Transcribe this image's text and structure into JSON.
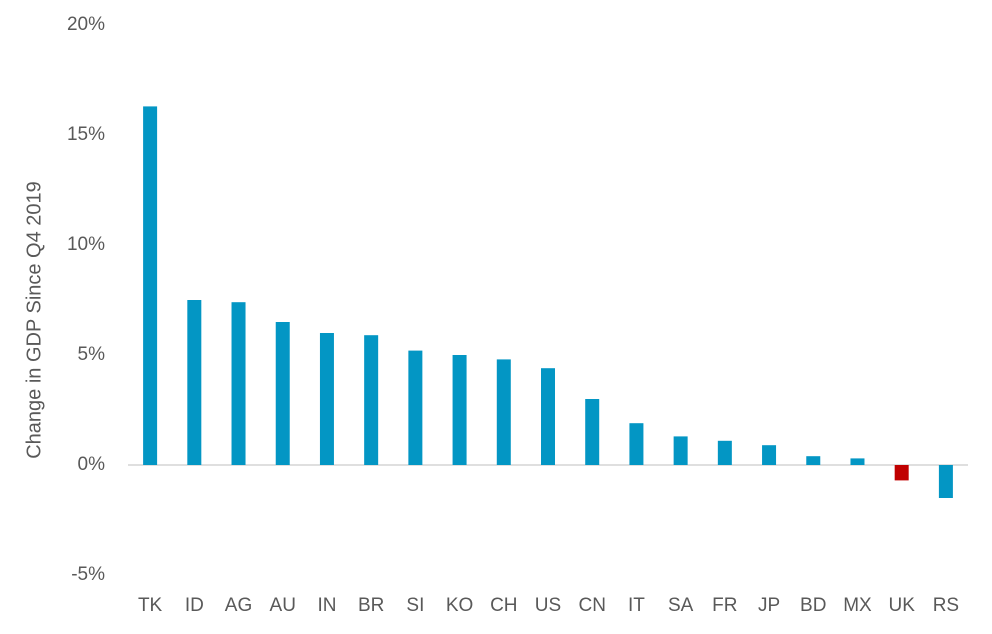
{
  "chart_data": {
    "type": "bar",
    "y_axis_label": "Change in GDP Since Q4 2019",
    "categories": [
      "TK",
      "ID",
      "AG",
      "AU",
      "IN",
      "BR",
      "SI",
      "KO",
      "CH",
      "US",
      "CN",
      "IT",
      "SA",
      "FR",
      "JP",
      "BD",
      "MX",
      "UK",
      "RS"
    ],
    "values": [
      16.3,
      7.5,
      7.4,
      6.5,
      6.0,
      5.9,
      5.2,
      5.0,
      4.8,
      4.4,
      3.0,
      1.9,
      1.3,
      1.1,
      0.9,
      0.4,
      0.3,
      -0.7,
      -1.5
    ],
    "colors": [
      "#0396c4",
      "#0396c4",
      "#0396c4",
      "#0396c4",
      "#0396c4",
      "#0396c4",
      "#0396c4",
      "#0396c4",
      "#0396c4",
      "#0396c4",
      "#0396c4",
      "#0396c4",
      "#0396c4",
      "#0396c4",
      "#0396c4",
      "#0396c4",
      "#0396c4",
      "#c00000",
      "#0396c4"
    ],
    "ylim": [
      -5,
      20
    ],
    "yticks": [
      {
        "value": -5,
        "label": "-5%"
      },
      {
        "value": 0,
        "label": "0%"
      },
      {
        "value": 5,
        "label": "5%"
      },
      {
        "value": 10,
        "label": "10%"
      },
      {
        "value": 15,
        "label": "15%"
      },
      {
        "value": 20,
        "label": "20%"
      }
    ],
    "grid": false
  }
}
